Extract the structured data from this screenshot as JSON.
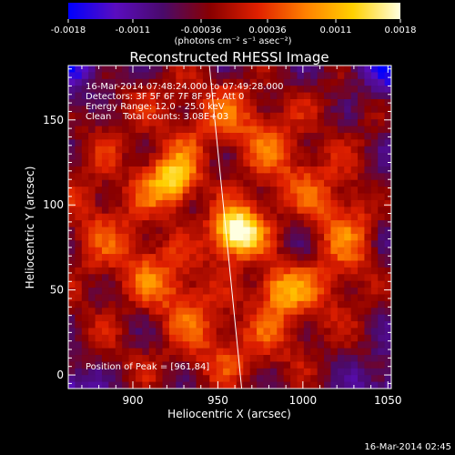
{
  "chart_data": {
    "type": "heatmap",
    "title": "Reconstructed RHESSI Image",
    "xlabel": "Heliocentric X (arcsec)",
    "ylabel": "Heliocentric Y (arcsec)",
    "xlim": [
      862,
      1052
    ],
    "ylim": [
      -8,
      182
    ],
    "x_ticks": [
      900,
      950,
      1000,
      1050
    ],
    "y_ticks": [
      0,
      50,
      100,
      150
    ],
    "colorbar": {
      "range": [
        -0.0018,
        0.0018
      ],
      "tick_values": [
        -0.0018,
        -0.0011,
        -0.00036,
        0.00036,
        0.0011,
        0.0018
      ],
      "tick_labels": [
        "-0.0018",
        "-0.0011",
        "-0.00036",
        "0.00036",
        "0.0011",
        "0.0018"
      ],
      "unit_label": "(photons cm⁻² s⁻¹ asec⁻²)",
      "colors": [
        "#0000ff",
        "#5a0dbf",
        "#4a0a6a",
        "#8a0000",
        "#e02000",
        "#ff8000",
        "#ffd000",
        "#ffffe0"
      ]
    },
    "annotations": [
      "16-Mar-2014 07:48:24.000 to 07:49:28.000",
      "Detectors: 3F 5F 6F 7F 8F 9F, Att 0",
      "Energy Range: 12.0 - 25.0 keV",
      "Clean    Total counts: 3.08E+03"
    ],
    "peak_label": "Position of Peak = [961,84]",
    "sources": [
      {
        "x": 961,
        "y": 84,
        "peak": 0.0018
      },
      {
        "x": 925,
        "y": 113,
        "peak": 0.0012
      },
      {
        "x": 985,
        "y": 52,
        "peak": 0.001
      }
    ],
    "limb_line": [
      [
        945,
        182
      ],
      [
        964,
        -8
      ]
    ]
  },
  "footer": {
    "timestamp": "16-Mar-2014 02:45"
  }
}
